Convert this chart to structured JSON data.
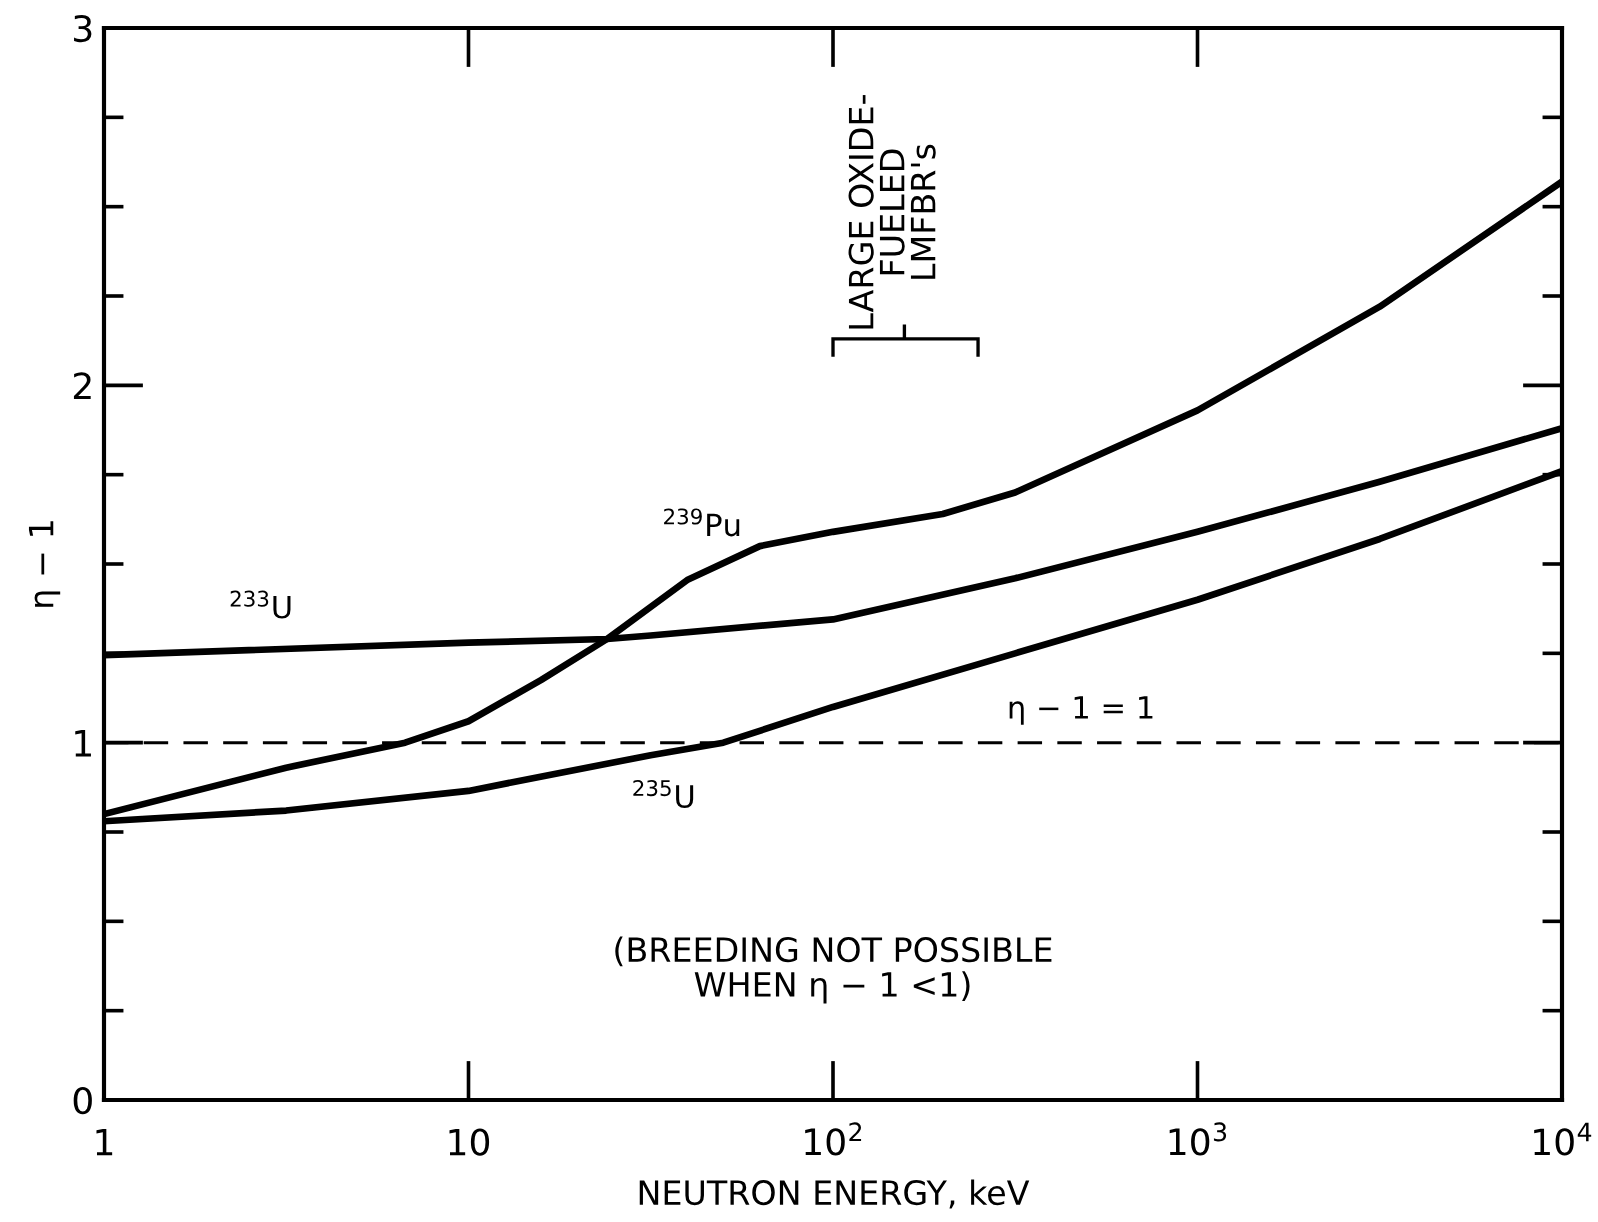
{
  "chart_data": {
    "type": "line",
    "xlabel": "NEUTRON ENERGY, keV",
    "ylabel": "η − 1",
    "log": "x",
    "xlim": [
      1,
      10000
    ],
    "ylim": [
      0,
      3
    ],
    "xticks": [
      1,
      10,
      {
        "value": 100,
        "label": "10$^{2}$"
      },
      {
        "value": 1000,
        "label": "10$^{3}$"
      },
      {
        "value": 10000,
        "label": "10$^{4}$"
      }
    ],
    "yticks": [
      0,
      {
        "value": 0.25,
        "label": null
      },
      {
        "value": 0.5,
        "label": null
      },
      {
        "value": 0.75,
        "label": null
      },
      1,
      {
        "value": 1.25,
        "label": null
      },
      {
        "value": 1.5,
        "label": null
      },
      {
        "value": 1.75,
        "label": null
      },
      2,
      {
        "value": 2.25,
        "label": null
      },
      {
        "value": 2.5,
        "label": null
      },
      {
        "value": 2.75,
        "label": null
      },
      3
    ],
    "grid": false,
    "legend": false,
    "marker": "none",
    "line_style": "solid",
    "series": [
      {
        "name": "$^{233}$U",
        "color": "#000000",
        "x": [
          1,
          10,
          24,
          31.6,
          100,
          316,
          1000,
          3162,
          10000
        ],
        "values": [
          1.245,
          1.28,
          1.29,
          1.3,
          1.345,
          1.46,
          1.59,
          1.73,
          1.88
        ]
      },
      {
        "name": "$^{239}$Pu",
        "color": "#000000",
        "x": [
          1,
          3.16,
          6.7,
          10,
          15.8,
          24,
          39.8,
          63,
          100,
          200,
          316,
          1000,
          3162,
          10000
        ],
        "values": [
          0.8,
          0.93,
          1.0,
          1.06,
          1.175,
          1.29,
          1.455,
          1.55,
          1.59,
          1.64,
          1.7,
          1.93,
          2.22,
          2.57
        ]
      },
      {
        "name": "$^{235}$U",
        "color": "#000000",
        "x": [
          1,
          3.16,
          10,
          31.6,
          50,
          100,
          316,
          1000,
          3162,
          10000
        ],
        "values": [
          0.78,
          0.81,
          0.865,
          0.965,
          1.0,
          1.1,
          1.25,
          1.4,
          1.57,
          1.76
        ]
      }
    ],
    "ref_lines": [
      {
        "axis": "y",
        "value": 1,
        "label": "η − 1 = 1",
        "color": "#000000",
        "line_style": "dashed"
      }
    ],
    "annotations": [
      "LARGE OXIDE-\nFUELED\nLMFBR's",
      "(BREEDING NOT POSSIBLE\nWHEN η − 1 <1)"
    ]
  }
}
